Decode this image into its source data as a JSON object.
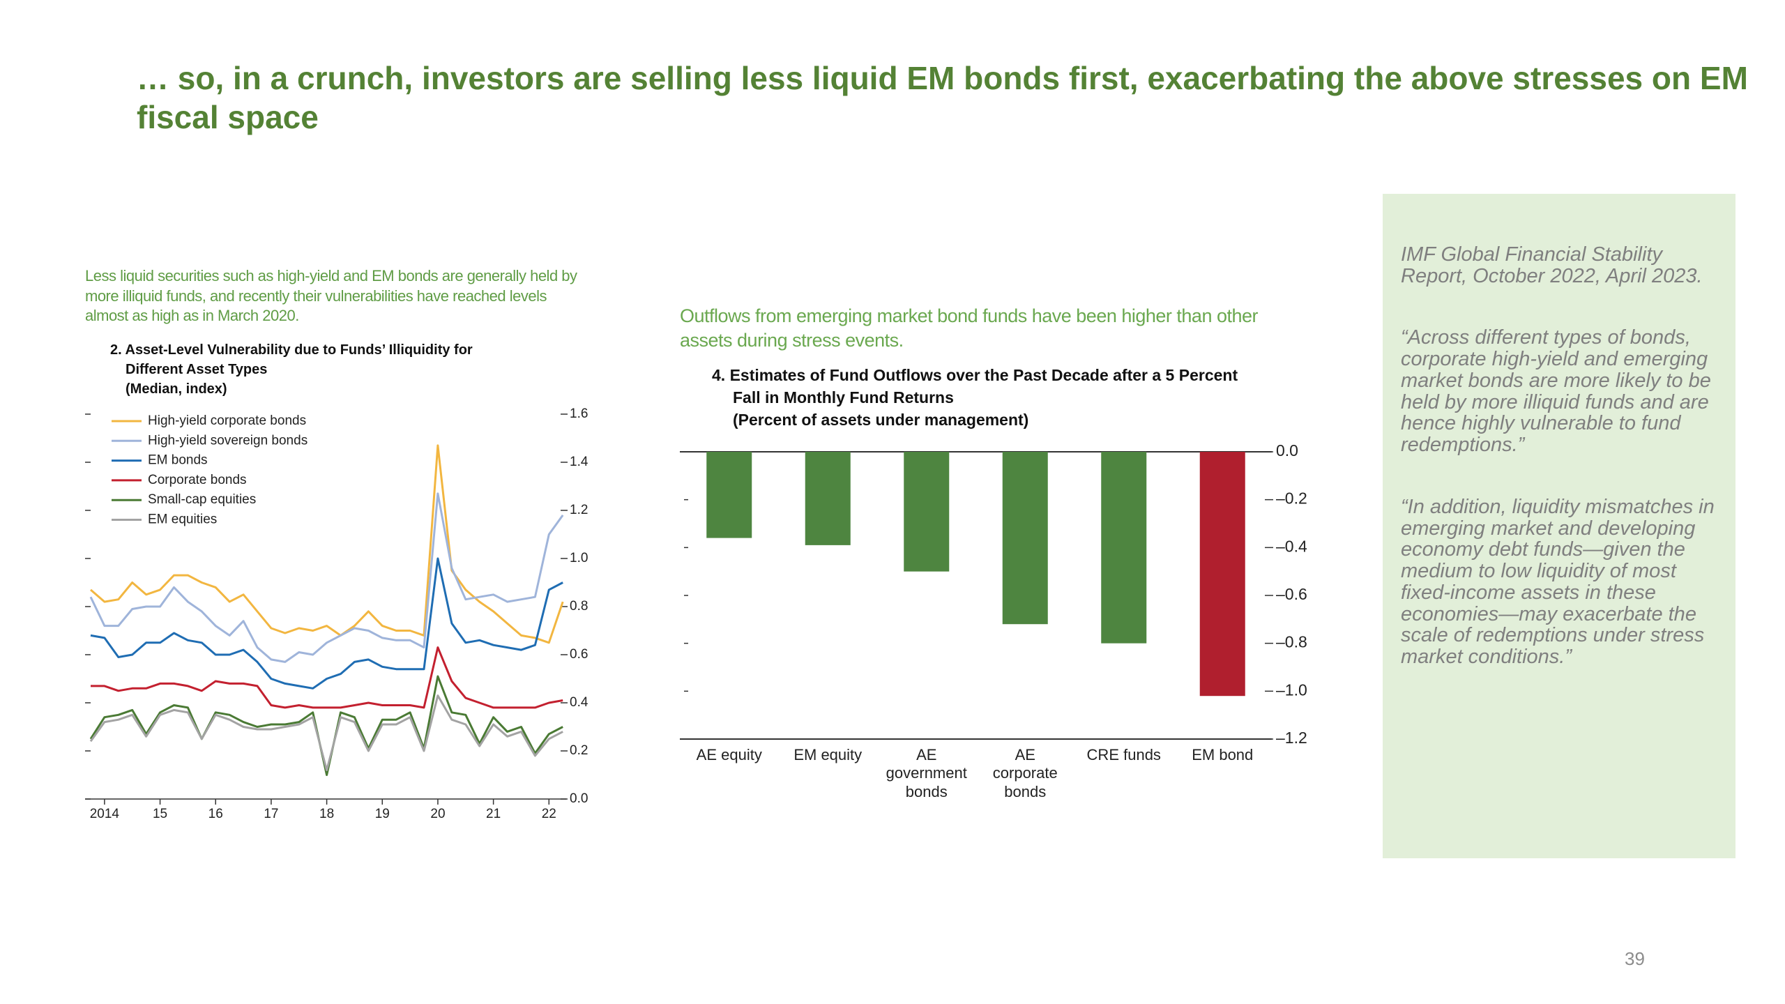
{
  "title": "… so, in a crunch, investors are selling less liquid EM bonds first, exacerbating the above stresses on EM fiscal space",
  "chart_data": [
    {
      "type": "line",
      "subtitle": "Less liquid securities such as high-yield and EM bonds are generally held by more illiquid funds, and recently their vulnerabilities have reached levels almost as high as in March 2020.",
      "title": "2. Asset-Level Vulnerability due to Funds’ Illiquidity for Different Asset Types",
      "units": "(Median, index)",
      "x": [
        2013.75,
        2014,
        2014.25,
        2014.5,
        2014.75,
        2015,
        2015.25,
        2015.5,
        2015.75,
        2016,
        2016.25,
        2016.5,
        2016.75,
        2017,
        2017.25,
        2017.5,
        2017.75,
        2018,
        2018.25,
        2018.5,
        2018.75,
        2019,
        2019.25,
        2019.5,
        2019.75,
        2020,
        2020.25,
        2020.5,
        2020.75,
        2021,
        2021.25,
        2021.5,
        2021.75,
        2022,
        2022.25
      ],
      "series": [
        {
          "name": "High-yield corporate bonds",
          "color": "#f2b640",
          "values": [
            0.87,
            0.82,
            0.83,
            0.9,
            0.85,
            0.87,
            0.93,
            0.93,
            0.9,
            0.88,
            0.82,
            0.85,
            0.78,
            0.71,
            0.69,
            0.71,
            0.7,
            0.72,
            0.68,
            0.72,
            0.78,
            0.72,
            0.7,
            0.7,
            0.68,
            1.47,
            0.95,
            0.87,
            0.82,
            0.78,
            0.73,
            0.68,
            0.67,
            0.65,
            0.82
          ]
        },
        {
          "name": "High-yield sovereign bonds",
          "color": "#9fb4da",
          "values": [
            0.84,
            0.72,
            0.72,
            0.79,
            0.8,
            0.8,
            0.88,
            0.82,
            0.78,
            0.72,
            0.68,
            0.74,
            0.63,
            0.58,
            0.57,
            0.61,
            0.6,
            0.65,
            0.68,
            0.71,
            0.7,
            0.67,
            0.66,
            0.66,
            0.63,
            1.27,
            0.96,
            0.83,
            0.84,
            0.85,
            0.82,
            0.83,
            0.84,
            1.1,
            1.18
          ]
        },
        {
          "name": "EM bonds",
          "color": "#1f6db3",
          "values": [
            0.68,
            0.67,
            0.59,
            0.6,
            0.65,
            0.65,
            0.69,
            0.66,
            0.65,
            0.6,
            0.6,
            0.62,
            0.57,
            0.5,
            0.48,
            0.47,
            0.46,
            0.5,
            0.52,
            0.57,
            0.58,
            0.55,
            0.54,
            0.54,
            0.54,
            1,
            0.73,
            0.65,
            0.66,
            0.64,
            0.63,
            0.62,
            0.64,
            0.87,
            0.9
          ]
        },
        {
          "name": "Corporate bonds",
          "color": "#c3202f",
          "values": [
            0.47,
            0.47,
            0.45,
            0.46,
            0.46,
            0.48,
            0.48,
            0.47,
            0.45,
            0.49,
            0.48,
            0.48,
            0.47,
            0.39,
            0.38,
            0.39,
            0.38,
            0.38,
            0.38,
            0.39,
            0.4,
            0.39,
            0.39,
            0.39,
            0.38,
            0.63,
            0.49,
            0.42,
            0.4,
            0.38,
            0.38,
            0.38,
            0.38,
            0.4,
            0.41
          ]
        },
        {
          "name": "Small-cap equities",
          "color": "#4a7a34",
          "values": [
            0.25,
            0.34,
            0.35,
            0.37,
            0.27,
            0.36,
            0.39,
            0.38,
            0.25,
            0.36,
            0.35,
            0.32,
            0.3,
            0.31,
            0.31,
            0.32,
            0.36,
            0.1,
            0.36,
            0.34,
            0.21,
            0.33,
            0.33,
            0.36,
            0.21,
            0.51,
            0.36,
            0.35,
            0.23,
            0.34,
            0.28,
            0.3,
            0.19,
            0.27,
            0.3
          ]
        },
        {
          "name": "EM equities",
          "color": "#a3a3a3",
          "values": [
            0.24,
            0.32,
            0.33,
            0.35,
            0.26,
            0.35,
            0.37,
            0.36,
            0.25,
            0.35,
            0.33,
            0.3,
            0.29,
            0.29,
            0.3,
            0.31,
            0.34,
            0.12,
            0.34,
            0.32,
            0.2,
            0.31,
            0.31,
            0.34,
            0.2,
            0.43,
            0.33,
            0.31,
            0.22,
            0.31,
            0.26,
            0.28,
            0.18,
            0.25,
            0.28
          ]
        }
      ],
      "xlim": [
        2013.65,
        2022.31
      ],
      "xticks": [
        2014,
        {
          "value": 2015,
          "label": "15"
        },
        {
          "value": 2016,
          "label": "16"
        },
        {
          "value": 2017,
          "label": "17"
        },
        {
          "value": 2018,
          "label": "18"
        },
        {
          "value": 2019,
          "label": "19"
        },
        {
          "value": 2020,
          "label": "20"
        },
        {
          "value": 2021,
          "label": "21"
        },
        {
          "value": 2022,
          "label": "22"
        }
      ],
      "ylim": [
        0,
        1.6
      ],
      "yticks": [
        {
          "value": 0,
          "label": "0.0"
        },
        0.2,
        0.4,
        0.6,
        0.8,
        {
          "value": 1,
          "label": "1.0"
        },
        1.2,
        1.4,
        1.6
      ],
      "legend": "upper left"
    },
    {
      "type": "bar",
      "subtitle": "Outflows from emerging market bond funds have been higher than other assets during stress events.",
      "title": "4. Estimates of Fund Outflows over the Past Decade after a 5 Percent Fall in Monthly Fund Returns",
      "units": "(Percent of assets under management)",
      "categories": [
        "AE equity",
        "EM equity",
        "AE government bonds",
        "AE corporate bonds",
        "CRE funds",
        "EM bond"
      ],
      "values": [
        -0.36,
        -0.39,
        -0.5,
        -0.72,
        -0.8,
        -1.02
      ],
      "colors": [
        "#4e8540",
        "#4e8540",
        "#4e8540",
        "#4e8540",
        "#4e8540",
        "#b01f2e"
      ],
      "ylim": [
        -1.2,
        0
      ],
      "yticks": [
        {
          "value": 0,
          "label": "0.0"
        },
        {
          "value": -0.2,
          "label": "–0.2"
        },
        {
          "value": -0.4,
          "label": "–0.4"
        },
        {
          "value": -0.6,
          "label": "–0.6"
        },
        {
          "value": -0.8,
          "label": "–0.8"
        },
        {
          "value": -1,
          "label": "–1.0"
        },
        {
          "value": -1.2,
          "label": "–1.2"
        }
      ]
    }
  ],
  "sidebar": {
    "source": "IMF Global Financial Stability Report, October 2022, April 2023.",
    "quotes": [
      "“Across different types of bonds, corporate high-yield and emerging market bonds are more likely to be held by more illiquid funds and are hence highly vulnerable to fund redemptions.”",
      "“In addition, liquidity mismatches in emerging market and developing economy debt funds—given the medium to low liquidity of most fixed-income assets in these economies—may exacerbate the scale of redemptions under stress market conditions.”"
    ]
  },
  "page_number": "39"
}
